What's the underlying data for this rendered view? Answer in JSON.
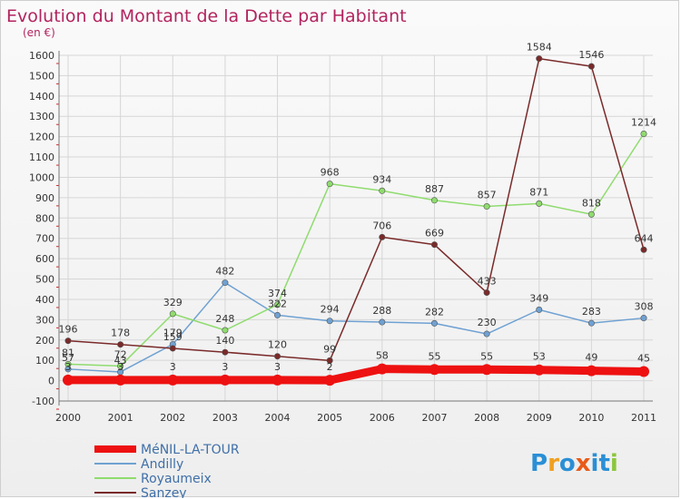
{
  "chart_data": {
    "type": "line",
    "title": "Evolution du Montant de la Dette par Habitant",
    "subtitle": "(en €)",
    "x": [
      "2000",
      "2001",
      "2002",
      "2003",
      "2004",
      "2005",
      "2006",
      "2007",
      "2008",
      "2009",
      "2010",
      "2011"
    ],
    "ylim": [
      -100,
      1600
    ],
    "yticks": [
      -100,
      0,
      100,
      200,
      300,
      400,
      500,
      600,
      700,
      800,
      900,
      1000,
      1100,
      1200,
      1300,
      1400,
      1500,
      1600
    ],
    "grid": true,
    "legend_position": "bottom-left",
    "series": [
      {
        "name": "MéNIL-LA-TOUR",
        "color": "#ee1111",
        "values": [
          3,
          3,
          3,
          3,
          3,
          2,
          58,
          55,
          55,
          53,
          49,
          45
        ]
      },
      {
        "name": "Andilly",
        "color": "#6fa1d2",
        "values": [
          57,
          43,
          179,
          482,
          322,
          294,
          288,
          282,
          230,
          349,
          283,
          308
        ]
      },
      {
        "name": "Royaumeix",
        "color": "#8fdc6e",
        "values": [
          81,
          72,
          329,
          248,
          374,
          968,
          934,
          887,
          857,
          871,
          818,
          1214
        ]
      },
      {
        "name": "Sanzey",
        "color": "#7a2a2a",
        "values": [
          196,
          178,
          159,
          140,
          120,
          99,
          706,
          669,
          433,
          1584,
          1546,
          644
        ]
      }
    ]
  },
  "logo": {
    "text": "Proxiti",
    "colors": [
      "#2a8fd6",
      "#f0a020",
      "#2a8fd6",
      "#e85a1a",
      "#2a8fd6",
      "#2a8fd6",
      "#8cc63f"
    ]
  }
}
